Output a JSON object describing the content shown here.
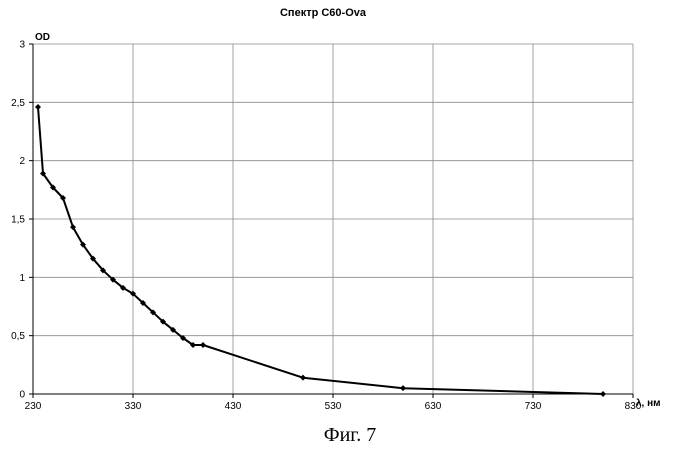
{
  "chart_data": {
    "type": "line",
    "title": "Спектр С60-Ova",
    "ylabel": "OD",
    "xlabel": "λ, нм",
    "xlim": [
      230,
      830
    ],
    "ylim": [
      0,
      3
    ],
    "x_ticks": [
      "230",
      "330",
      "430",
      "530",
      "630",
      "730",
      "830"
    ],
    "y_ticks": [
      "0",
      "0,5",
      "1",
      "1,5",
      "2",
      "2,5",
      "3"
    ],
    "grid": true,
    "legend": "none",
    "series": [
      {
        "color": "#000000",
        "marker": "diamond",
        "x": [
          235,
          240,
          250,
          260,
          270,
          280,
          290,
          300,
          310,
          320,
          330,
          340,
          350,
          360,
          370,
          380,
          390,
          400,
          500,
          600,
          800
        ],
        "y": [
          2.46,
          1.89,
          1.77,
          1.68,
          1.43,
          1.28,
          1.16,
          1.06,
          0.98,
          0.91,
          0.86,
          0.78,
          0.7,
          0.62,
          0.55,
          0.48,
          0.42,
          0.42,
          0.14,
          0.05,
          0.0
        ]
      }
    ]
  },
  "caption": "Фиг. 7"
}
